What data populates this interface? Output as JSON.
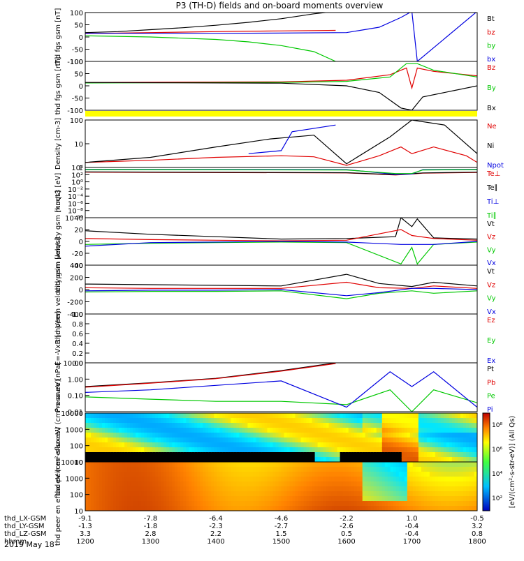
{
  "title": "P3 (TH-D) fields and on-board moments overview",
  "date_label": "2019 May 18",
  "colors": {
    "black": "#000000",
    "red": "#e00000",
    "green": "#00c800",
    "blue": "#0000e0",
    "yellow": "#ffff00"
  },
  "x_axis": {
    "rows": [
      {
        "label": "thd_LX-GSM",
        "values": [
          "-9.1",
          "-7.8",
          "-6.4",
          "-4.6",
          "-2.2",
          "1.0",
          "-0.5"
        ]
      },
      {
        "label": "thd_LY-GSM",
        "values": [
          "-1.3",
          "-1.8",
          "-2.3",
          "-2.7",
          "-2.6",
          "-0.4",
          "3.2"
        ]
      },
      {
        "label": "thd_LZ-GSM",
        "values": [
          "3.3",
          "2.8",
          "2.2",
          "1.5",
          "0.5",
          "-0.4",
          "0.8"
        ]
      },
      {
        "label": "hhmm",
        "values": [
          "1200",
          "1300",
          "1400",
          "1500",
          "1600",
          "1700",
          "1800"
        ]
      }
    ]
  },
  "chart_data": [
    {
      "type": "line",
      "ylabel": "thd fgs gsm [nT]",
      "ylim": [
        -100,
        100
      ],
      "yticks": [
        "100",
        "50",
        "0",
        "-50",
        "-100"
      ],
      "legend": [
        "Bt",
        "bz",
        "by",
        "bx"
      ],
      "series": [
        {
          "name": "Bt",
          "color": "black",
          "x": [
            1200,
            1230,
            1300,
            1330,
            1400,
            1430,
            1500,
            1530,
            1550
          ],
          "values": [
            18,
            22,
            30,
            38,
            48,
            60,
            75,
            95,
            105
          ]
        },
        {
          "name": "bz",
          "color": "red",
          "x": [
            1200,
            1300,
            1400,
            1500,
            1550
          ],
          "values": [
            14,
            18,
            22,
            25,
            27
          ]
        },
        {
          "name": "by",
          "color": "green",
          "x": [
            1200,
            1300,
            1400,
            1430,
            1500,
            1530,
            1550
          ],
          "values": [
            5,
            0,
            -10,
            -20,
            -35,
            -60,
            -100
          ]
        },
        {
          "name": "bx",
          "color": "blue",
          "x": [
            1200,
            1300,
            1400,
            1500,
            1600,
            1630,
            1650,
            1700,
            1705,
            1800
          ],
          "values": [
            15,
            15,
            15,
            16,
            18,
            40,
            80,
            105,
            -100,
            105
          ]
        }
      ]
    },
    {
      "type": "line",
      "ylabel": "thd fgs gsm [nT]",
      "ylim": [
        -120,
        100
      ],
      "yticks": [
        "100",
        "50",
        "0",
        "-50",
        "-100"
      ],
      "legend": [
        "Bz",
        "By",
        "Bx"
      ],
      "series": [
        {
          "name": "Bz",
          "color": "red",
          "x": [
            1200,
            1500,
            1600,
            1640,
            1655,
            1700,
            1705,
            1720,
            1800
          ],
          "values": [
            5,
            8,
            15,
            40,
            70,
            -20,
            70,
            55,
            35
          ]
        },
        {
          "name": "By",
          "color": "green",
          "x": [
            1200,
            1500,
            1600,
            1640,
            1655,
            1700,
            1705,
            1720,
            1800
          ],
          "values": [
            3,
            5,
            10,
            30,
            90,
            90,
            90,
            60,
            30
          ]
        },
        {
          "name": "Bx",
          "color": "black",
          "x": [
            1200,
            1500,
            1600,
            1630,
            1650,
            1700,
            1710,
            1740,
            1800
          ],
          "values": [
            5,
            2,
            -10,
            -40,
            -110,
            -120,
            -60,
            -30,
            -10
          ]
        }
      ]
    },
    {
      "type": "line",
      "ylabel": "Density [cm-3]",
      "scale": "log",
      "ylim": [
        0.3,
        200
      ],
      "yticks": [
        "100",
        "10",
        "1"
      ],
      "legend": [
        "Ne",
        "Ni",
        "Npot"
      ],
      "series": [
        {
          "name": "Ne",
          "color": "red",
          "x": [
            1200,
            1300,
            1400,
            1500,
            1530,
            1600,
            1630,
            1650,
            1700,
            1720,
            1750,
            1800
          ],
          "values": [
            0.6,
            0.8,
            1.2,
            1.5,
            1.3,
            0.4,
            1.5,
            5,
            2,
            5,
            1.5,
            0.6
          ]
        },
        {
          "name": "Ni",
          "color": "black",
          "x": [
            1200,
            1300,
            1400,
            1450,
            1530,
            1600,
            1640,
            1700,
            1730,
            1800
          ],
          "values": [
            0.6,
            1.2,
            5,
            15,
            25,
            0.5,
            20,
            200,
            100,
            2
          ]
        },
        {
          "name": "Npot",
          "color": "blue",
          "x": [
            1430,
            1500,
            1510,
            1550
          ],
          "values": [
            2,
            3,
            40,
            100
          ]
        }
      ]
    },
    {
      "type": "line",
      "ylabel": "moqt3 [eV]",
      "scale": "log",
      "ylim": [
        1e-10,
        10000
      ],
      "yticks": [
        "10⁴",
        "10²",
        "10⁰",
        "10⁻²",
        "10⁻⁴",
        "10⁻⁶",
        "10⁻⁸",
        "10⁻¹⁰"
      ],
      "legend": [
        "Te⊥",
        "Te∥",
        "Ti⊥",
        "Ti∥"
      ],
      "series": [
        {
          "name": "Te⊥",
          "color": "red",
          "x": [
            1200,
            1600,
            1645,
            1700,
            1710,
            1800
          ],
          "values": [
            500,
            300,
            80,
            150,
            250,
            400
          ]
        },
        {
          "name": "Te∥",
          "color": "black",
          "x": [
            1200,
            1600,
            1645,
            1700,
            1710,
            1800
          ],
          "values": [
            600,
            350,
            100,
            180,
            300,
            500
          ]
        },
        {
          "name": "Ti⊥",
          "color": "blue",
          "x": [
            1200,
            1600,
            1645,
            1700,
            1710,
            1800
          ],
          "values": [
            3000,
            2500,
            120,
            150,
            2500,
            3000
          ]
        },
        {
          "name": "Ti∥",
          "color": "green",
          "x": [
            1200,
            1600,
            1645,
            1700,
            1710,
            1800
          ],
          "values": [
            2500,
            2000,
            200,
            200,
            2000,
            2500
          ]
        }
      ]
    },
    {
      "type": "line",
      "ylabel": "thd peim velocity gsm [km/s]",
      "ylim": [
        -40,
        40
      ],
      "yticks": [
        "40",
        "20",
        "0",
        "-20",
        "-40"
      ],
      "legend": [
        "Vt",
        "Vz",
        "Vy",
        "Vx"
      ],
      "series": [
        {
          "name": "Vt",
          "color": "black",
          "x": [
            1200,
            1300,
            1400,
            1500,
            1600,
            1645,
            1650,
            1700,
            1705,
            1720,
            1800
          ],
          "values": [
            18,
            12,
            8,
            4,
            5,
            8,
            40,
            25,
            38,
            6,
            4
          ]
        },
        {
          "name": "Vz",
          "color": "red",
          "x": [
            1200,
            1300,
            1400,
            1500,
            1600,
            1650,
            1700,
            1720,
            1800
          ],
          "values": [
            5,
            3,
            2,
            1,
            2,
            20,
            10,
            5,
            2
          ]
        },
        {
          "name": "Vy",
          "color": "green",
          "x": [
            1200,
            1300,
            1400,
            1500,
            1600,
            1650,
            1700,
            1705,
            1720,
            1800
          ],
          "values": [
            -5,
            -3,
            -2,
            -1,
            -2,
            -38,
            -10,
            -38,
            -5,
            -1
          ]
        },
        {
          "name": "Vx",
          "color": "blue",
          "x": [
            1200,
            1300,
            1400,
            1500,
            1600,
            1650,
            1700,
            1720,
            1800
          ],
          "values": [
            -8,
            -2,
            -1,
            0,
            -1,
            -5,
            -5,
            -5,
            0
          ]
        }
      ]
    },
    {
      "type": "line",
      "ylabel": "thd peem velocity gsm [km/s]",
      "ylim": [
        -400,
        400
      ],
      "yticks": [
        "400",
        "200",
        "0",
        "-200",
        "-400"
      ],
      "legend": [
        "Vt",
        "Vz",
        "Vy",
        "Vx"
      ],
      "series": [
        {
          "name": "Vt",
          "color": "black",
          "x": [
            1200,
            1300,
            1400,
            1500,
            1600,
            1630,
            1700,
            1720,
            1800
          ],
          "values": [
            90,
            80,
            70,
            60,
            250,
            100,
            50,
            120,
            60
          ]
        },
        {
          "name": "Vz",
          "color": "red",
          "x": [
            1200,
            1300,
            1400,
            1500,
            1600,
            1630,
            1700,
            1720,
            1800
          ],
          "values": [
            30,
            20,
            20,
            20,
            120,
            30,
            20,
            60,
            20
          ]
        },
        {
          "name": "Vy",
          "color": "green",
          "x": [
            1200,
            1300,
            1400,
            1500,
            1600,
            1630,
            1700,
            1720,
            1800
          ],
          "values": [
            -40,
            -30,
            -30,
            -20,
            -150,
            -60,
            -20,
            -60,
            -20
          ]
        },
        {
          "name": "Vx",
          "color": "blue",
          "x": [
            1200,
            1300,
            1400,
            1500,
            1600,
            1630,
            1700,
            1720,
            1800
          ],
          "values": [
            -20,
            -10,
            -10,
            0,
            -100,
            -50,
            20,
            20,
            0
          ]
        }
      ]
    },
    {
      "type": "line",
      "ylabel": "E=-VxB [mV/m]",
      "ylim": [
        0,
        1
      ],
      "yticks": [
        "1.0",
        "0.8",
        "0.6",
        "0.4",
        "0.2",
        "0.0"
      ],
      "legend": [
        "Ez",
        "Ey",
        "Ex"
      ],
      "series": []
    },
    {
      "type": "line",
      "ylabel": "Pressure [nPa]",
      "scale": "log",
      "ylim": [
        0.01,
        20
      ],
      "yticks": [
        "10.00",
        "1.00",
        "0.10",
        "0.01"
      ],
      "legend": [
        "Pt",
        "Pb",
        "Pe",
        "Pi"
      ],
      "series": [
        {
          "name": "Pt",
          "color": "black",
          "x": [
            1200,
            1300,
            1400,
            1500,
            1550
          ],
          "values": [
            0.5,
            0.9,
            1.8,
            6,
            20
          ]
        },
        {
          "name": "Pb",
          "color": "red",
          "x": [
            1200,
            1300,
            1400,
            1500,
            1550
          ],
          "values": [
            0.45,
            0.85,
            1.7,
            5.5,
            18
          ]
        },
        {
          "name": "Pe",
          "color": "green",
          "x": [
            1200,
            1300,
            1400,
            1500,
            1600,
            1640,
            1700,
            1720,
            1800
          ],
          "values": [
            0.1,
            0.07,
            0.05,
            0.05,
            0.03,
            0.3,
            0.01,
            0.3,
            0.04
          ]
        },
        {
          "name": "Pi",
          "color": "blue",
          "x": [
            1200,
            1300,
            1400,
            1500,
            1600,
            1640,
            1700,
            1720,
            1800
          ],
          "values": [
            0.2,
            0.3,
            0.6,
            1.2,
            0.02,
            5,
            0.5,
            5,
            0.02
          ]
        }
      ]
    },
    {
      "type": "heatmap",
      "ylabel": "thd peir en eflux eV (cm²-s-sr-eV)",
      "scale": "log",
      "ylim": [
        5,
        25000
      ],
      "yticks": [
        "10000",
        "1000",
        "100",
        "10"
      ]
    },
    {
      "type": "heatmap",
      "ylabel": "thd peer en eflux eV (cm²-s-sr-eV)",
      "scale": "log",
      "ylim": [
        5,
        25000
      ],
      "yticks": [
        "10000",
        "1000",
        "100",
        "10"
      ]
    }
  ],
  "colorbar": {
    "label": "[eV/(cm²-s-str-eV)] (All Qs)",
    "ticks": [
      "10⁸",
      "10⁶",
      "10⁴",
      "10²"
    ]
  }
}
